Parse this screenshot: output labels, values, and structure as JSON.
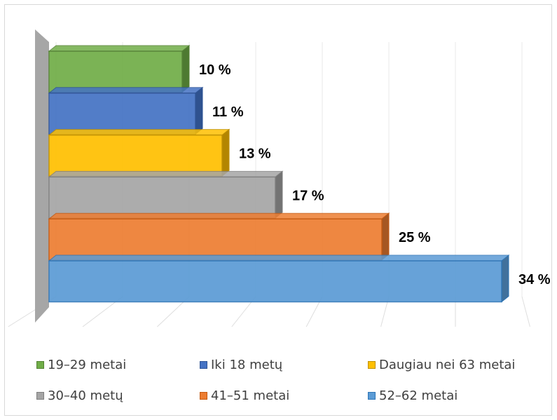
{
  "chart_data": {
    "type": "bar",
    "orientation": "horizontal",
    "style": "3d",
    "xlim": [
      0,
      40
    ],
    "grid": true,
    "legend_position": "bottom",
    "series": [
      {
        "name": "19–29 metai",
        "value": 10,
        "label": "10 %",
        "color": "#70ad47",
        "dark": "#4e7a31",
        "edge": "#548235"
      },
      {
        "name": "Iki 18 metų",
        "value": 11,
        "label": "11 %",
        "color": "#4472c4",
        "dark": "#2f528f",
        "edge": "#2f5597"
      },
      {
        "name": "Daugiau nei 63 metai",
        "value": 13,
        "label": "13 %",
        "color": "#ffc000",
        "dark": "#b38600",
        "edge": "#bf9000"
      },
      {
        "name": "30–40 metų",
        "value": 17,
        "label": "17 %",
        "color": "#a5a5a5",
        "dark": "#737373",
        "edge": "#7f7f7f"
      },
      {
        "name": "41–51 metai",
        "value": 25,
        "label": "25 %",
        "color": "#ed7d31",
        "dark": "#a65722",
        "edge": "#c55a11"
      },
      {
        "name": "52–62 metai",
        "value": 34,
        "label": "34 %",
        "color": "#5b9bd5",
        "dark": "#41719c",
        "edge": "#2e75b6"
      }
    ]
  }
}
